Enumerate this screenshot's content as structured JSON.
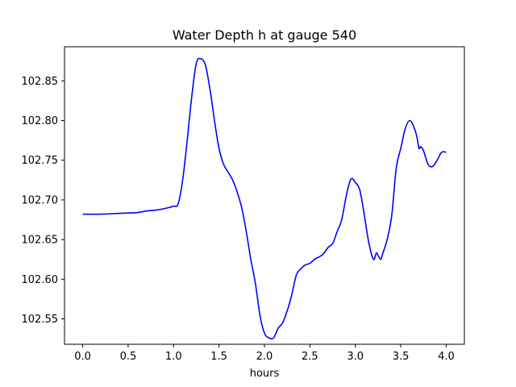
{
  "chart_data": {
    "type": "line",
    "title": "Water Depth h at gauge 540",
    "xlabel": "hours",
    "ylabel": "",
    "xlim": [
      -0.2,
      4.2
    ],
    "ylim": [
      102.518,
      102.893
    ],
    "x_ticks": [
      0.0,
      0.5,
      1.0,
      1.5,
      2.0,
      2.5,
      3.0,
      3.5,
      4.0
    ],
    "x_tick_labels": [
      "0.0",
      "0.5",
      "1.0",
      "1.5",
      "2.0",
      "2.5",
      "3.0",
      "3.5",
      "4.0"
    ],
    "y_ticks": [
      102.55,
      102.6,
      102.65,
      102.7,
      102.75,
      102.8,
      102.85
    ],
    "y_tick_labels": [
      "102.55",
      "102.60",
      "102.65",
      "102.70",
      "102.75",
      "102.80",
      "102.85"
    ],
    "grid": false,
    "series": [
      {
        "color": "#0000ff",
        "x": [
          0.0,
          0.2,
          0.4,
          0.6,
          0.7,
          0.8,
          0.9,
          1.0,
          1.05,
          1.1,
          1.15,
          1.2,
          1.25,
          1.3,
          1.35,
          1.4,
          1.45,
          1.5,
          1.55,
          1.6,
          1.65,
          1.7,
          1.75,
          1.8,
          1.85,
          1.9,
          1.95,
          2.0,
          2.05,
          2.1,
          2.15,
          2.2,
          2.25,
          2.3,
          2.35,
          2.4,
          2.45,
          2.5,
          2.55,
          2.6,
          2.65,
          2.7,
          2.75,
          2.8,
          2.85,
          2.9,
          2.95,
          3.0,
          3.05,
          3.1,
          3.15,
          3.2,
          3.23,
          3.25,
          3.28,
          3.3,
          3.35,
          3.4,
          3.45,
          3.5,
          3.55,
          3.6,
          3.65,
          3.68,
          3.7,
          3.72,
          3.75,
          3.8,
          3.85,
          3.9,
          3.95,
          4.0
        ],
        "y": [
          102.682,
          102.682,
          102.683,
          102.684,
          102.686,
          102.687,
          102.689,
          102.692,
          102.695,
          102.725,
          102.775,
          102.83,
          102.872,
          102.878,
          102.87,
          102.84,
          102.8,
          102.765,
          102.745,
          102.735,
          102.725,
          102.71,
          102.69,
          102.66,
          102.625,
          102.595,
          102.555,
          102.532,
          102.526,
          102.526,
          102.538,
          102.545,
          102.56,
          102.58,
          102.605,
          102.613,
          102.618,
          102.62,
          102.625,
          102.628,
          102.632,
          102.64,
          102.645,
          102.66,
          102.675,
          102.705,
          102.726,
          102.722,
          102.712,
          102.68,
          102.645,
          102.625,
          102.633,
          102.63,
          102.625,
          102.632,
          102.65,
          102.68,
          102.74,
          102.765,
          102.79,
          102.8,
          102.79,
          102.778,
          102.765,
          102.767,
          102.762,
          102.745,
          102.742,
          102.75,
          102.76,
          102.76
        ]
      }
    ]
  }
}
